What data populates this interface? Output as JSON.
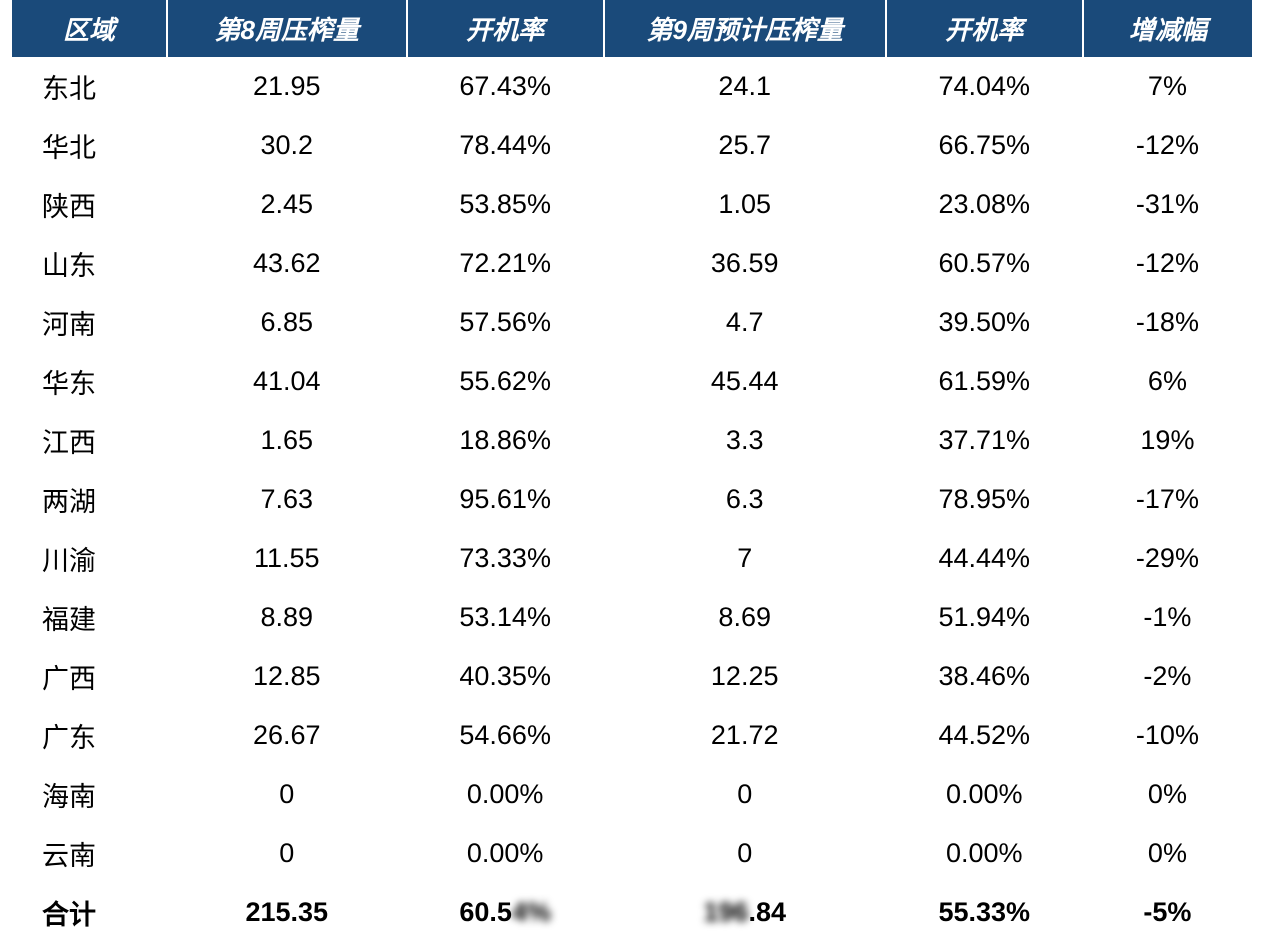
{
  "table": {
    "header_bg": "#1a4a7a",
    "header_color": "#ffffff",
    "body_color": "#000000",
    "header_fontsize": 26,
    "body_fontsize": 27,
    "columns": {
      "region": "区域",
      "week8_vol": "第8周压榨量",
      "week8_rate": "开机率",
      "week9_vol": "第9周预计压榨量",
      "week9_rate": "开机率",
      "change": "增减幅"
    },
    "rows": [
      {
        "region": "东北",
        "w8v": "21.95",
        "w8r": "67.43%",
        "w9v": "24.1",
        "w9r": "74.04%",
        "chg": "7%"
      },
      {
        "region": "华北",
        "w8v": "30.2",
        "w8r": "78.44%",
        "w9v": "25.7",
        "w9r": "66.75%",
        "chg": "-12%"
      },
      {
        "region": "陕西",
        "w8v": "2.45",
        "w8r": "53.85%",
        "w9v": "1.05",
        "w9r": "23.08%",
        "chg": "-31%"
      },
      {
        "region": "山东",
        "w8v": "43.62",
        "w8r": "72.21%",
        "w9v": "36.59",
        "w9r": "60.57%",
        "chg": "-12%"
      },
      {
        "region": "河南",
        "w8v": "6.85",
        "w8r": "57.56%",
        "w9v": "4.7",
        "w9r": "39.50%",
        "chg": "-18%"
      },
      {
        "region": "华东",
        "w8v": "41.04",
        "w8r": "55.62%",
        "w9v": "45.44",
        "w9r": "61.59%",
        "chg": "6%"
      },
      {
        "region": "江西",
        "w8v": "1.65",
        "w8r": "18.86%",
        "w9v": "3.3",
        "w9r": "37.71%",
        "chg": "19%"
      },
      {
        "region": "两湖",
        "w8v": "7.63",
        "w8r": "95.61%",
        "w9v": "6.3",
        "w9r": "78.95%",
        "chg": "-17%"
      },
      {
        "region": "川渝",
        "w8v": "11.55",
        "w8r": "73.33%",
        "w9v": "7",
        "w9r": "44.44%",
        "chg": "-29%"
      },
      {
        "region": "福建",
        "w8v": "8.89",
        "w8r": "53.14%",
        "w9v": "8.69",
        "w9r": "51.94%",
        "chg": "-1%"
      },
      {
        "region": "广西",
        "w8v": "12.85",
        "w8r": "40.35%",
        "w9v": "12.25",
        "w9r": "38.46%",
        "chg": "-2%"
      },
      {
        "region": "广东",
        "w8v": "26.67",
        "w8r": "54.66%",
        "w9v": "21.72",
        "w9r": "44.52%",
        "chg": "-10%"
      },
      {
        "region": "海南",
        "w8v": "0",
        "w8r": "0.00%",
        "w9v": "0",
        "w9r": "0.00%",
        "chg": "0%"
      },
      {
        "region": "云南",
        "w8v": "0",
        "w8r": "0.00%",
        "w9v": "0",
        "w9r": "0.00%",
        "chg": "0%"
      }
    ],
    "total": {
      "region": "合计",
      "w8v": "215.35",
      "w8r_prefix": "60.5",
      "w8r_blur": "4%",
      "w9v_blur": "196",
      "w9v_suffix": ".84",
      "w9r": "55.33%",
      "chg": "-5%"
    }
  }
}
